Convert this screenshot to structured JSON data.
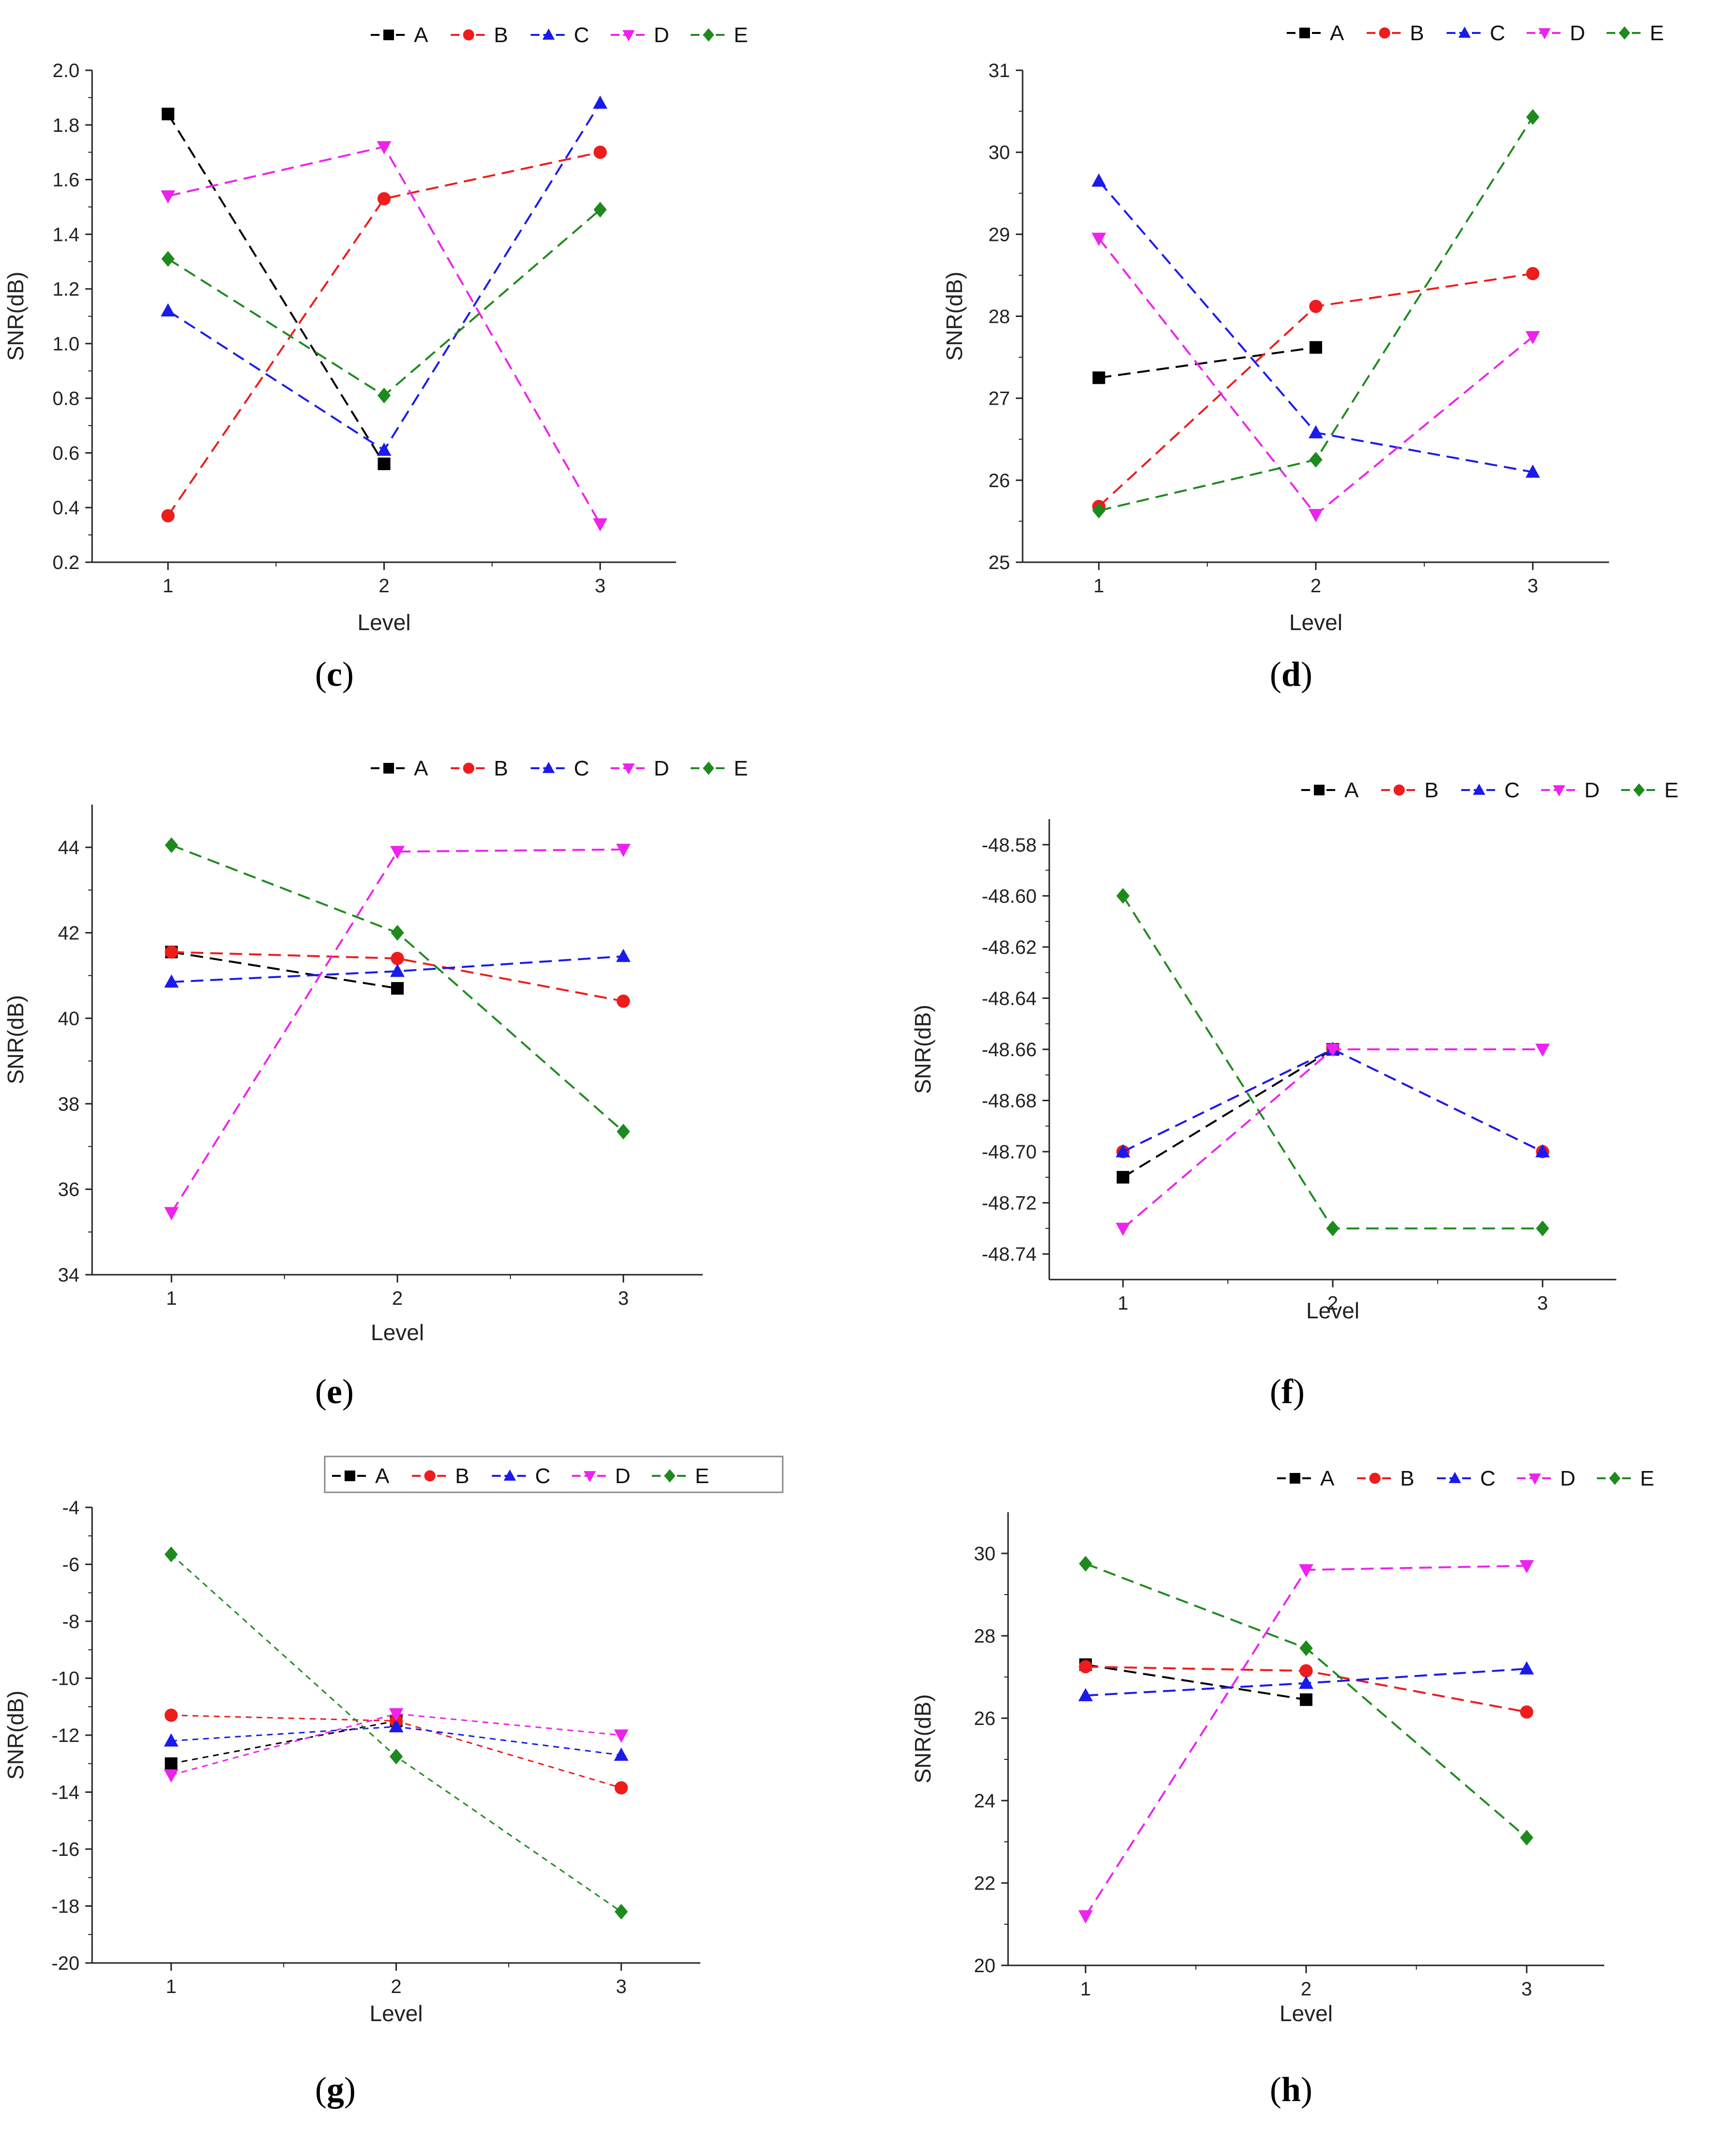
{
  "colors": {
    "A": "#000000",
    "B": "#ee1c1c",
    "C": "#1a1aee",
    "D": "#ee22ee",
    "E": "#1e8a1e"
  },
  "chart_data": [
    {
      "id": "c",
      "caption": "(c)",
      "caption_label": "c",
      "type": "line",
      "categories": [
        "1",
        "2",
        "3"
      ],
      "xlabel": "Level",
      "ylabel": "SNR(dB)",
      "ylim": [
        0.2,
        2.0
      ],
      "yticks": [
        0.2,
        0.4,
        0.6,
        0.8,
        1.0,
        1.2,
        1.4,
        1.6,
        1.8,
        2.0
      ],
      "ytick_labels": [
        "0.2",
        "0.4",
        "0.6",
        "0.8",
        "1.0",
        "1.2",
        "1.4",
        "1.6",
        "1.8",
        "2.0"
      ],
      "grid": false,
      "legend_position": "top",
      "series": [
        {
          "name": "A",
          "values": [
            1.84,
            0.56,
            null
          ]
        },
        {
          "name": "B",
          "values": [
            0.37,
            1.53,
            1.7
          ]
        },
        {
          "name": "C",
          "values": [
            1.12,
            0.61,
            1.88
          ]
        },
        {
          "name": "D",
          "values": [
            1.54,
            1.72,
            0.34
          ]
        },
        {
          "name": "E",
          "values": [
            1.31,
            0.81,
            1.49
          ]
        }
      ]
    },
    {
      "id": "d",
      "caption": "(d)",
      "caption_label": "d",
      "type": "line",
      "categories": [
        "1",
        "2",
        "3"
      ],
      "xlabel": "Level",
      "ylabel": "SNR(dB)",
      "ylim": [
        25,
        31
      ],
      "yticks": [
        25,
        26,
        27,
        28,
        29,
        30,
        31
      ],
      "ytick_labels": [
        "25",
        "26",
        "27",
        "28",
        "29",
        "30",
        "31"
      ],
      "grid": false,
      "legend_position": "top",
      "series": [
        {
          "name": "A",
          "values": [
            27.25,
            27.62,
            null
          ]
        },
        {
          "name": "B",
          "values": [
            25.68,
            28.12,
            28.52
          ]
        },
        {
          "name": "C",
          "values": [
            29.65,
            26.58,
            26.1
          ]
        },
        {
          "name": "D",
          "values": [
            28.95,
            25.58,
            27.75
          ]
        },
        {
          "name": "E",
          "values": [
            25.63,
            26.25,
            30.43
          ]
        }
      ]
    },
    {
      "id": "e",
      "caption": "(e)",
      "caption_label": "e",
      "type": "line",
      "categories": [
        "1",
        "2",
        "3"
      ],
      "xlabel": "Level",
      "ylabel": "SNR(dB)",
      "ylim": [
        34,
        45
      ],
      "yticks": [
        34,
        36,
        38,
        40,
        42,
        44
      ],
      "ytick_labels": [
        "34",
        "36",
        "38",
        "40",
        "42",
        "44"
      ],
      "grid": false,
      "legend_position": "top",
      "series": [
        {
          "name": "A",
          "values": [
            41.55,
            40.7,
            null
          ]
        },
        {
          "name": "B",
          "values": [
            41.55,
            41.4,
            40.4
          ]
        },
        {
          "name": "C",
          "values": [
            40.85,
            41.1,
            41.45
          ]
        },
        {
          "name": "D",
          "values": [
            35.45,
            43.9,
            43.95
          ]
        },
        {
          "name": "E",
          "values": [
            44.05,
            42.0,
            37.35
          ]
        }
      ]
    },
    {
      "id": "f",
      "caption": "(f)",
      "caption_label": "f",
      "type": "line",
      "categories": [
        "1",
        "2",
        "3"
      ],
      "xlabel": "Level",
      "ylabel": "SNR(dB)",
      "ylim": [
        -48.75,
        -48.57
      ],
      "yticks": [
        -48.74,
        -48.72,
        -48.7,
        -48.68,
        -48.66,
        -48.64,
        -48.62,
        -48.6,
        -48.58
      ],
      "ytick_labels": [
        "-48.74",
        "-48.72",
        "-48.70",
        "-48.68",
        "-48.66",
        "-48.64",
        "-48.62",
        "-48.60",
        "-48.58"
      ],
      "grid": false,
      "legend_position": "top",
      "series": [
        {
          "name": "A",
          "values": [
            -48.71,
            -48.66,
            null
          ]
        },
        {
          "name": "B",
          "values": [
            -48.7,
            -48.66,
            -48.7
          ]
        },
        {
          "name": "C",
          "values": [
            -48.7,
            -48.66,
            -48.7
          ]
        },
        {
          "name": "D",
          "values": [
            -48.73,
            -48.66,
            -48.66
          ]
        },
        {
          "name": "E",
          "values": [
            -48.6,
            -48.73,
            -48.73
          ]
        }
      ]
    },
    {
      "id": "g",
      "caption": "(g)",
      "caption_label": "g",
      "type": "line",
      "categories": [
        "1",
        "2",
        "3"
      ],
      "xlabel": "Level",
      "ylabel": "SNR(dB)",
      "ylim": [
        -20,
        -4
      ],
      "yticks": [
        -20,
        -18,
        -16,
        -14,
        -12,
        -10,
        -8,
        -6,
        -4
      ],
      "ytick_labels": [
        "-20",
        "-18",
        "-16",
        "-14",
        "-12",
        "-10",
        "-8",
        "-6",
        "-4"
      ],
      "grid": false,
      "legend_position": "top",
      "series": [
        {
          "name": "A",
          "values": [
            -13.0,
            -11.5,
            null
          ]
        },
        {
          "name": "B",
          "values": [
            -11.3,
            -11.5,
            -13.85
          ]
        },
        {
          "name": "C",
          "values": [
            -12.2,
            -11.7,
            -12.7
          ]
        },
        {
          "name": "D",
          "values": [
            -13.4,
            -11.25,
            -12.0
          ]
        },
        {
          "name": "E",
          "values": [
            -5.65,
            -12.75,
            -18.2
          ]
        }
      ]
    },
    {
      "id": "h",
      "caption": "(h)",
      "caption_label": "h",
      "type": "line",
      "categories": [
        "1",
        "2",
        "3"
      ],
      "xlabel": "Level",
      "ylabel": "SNR(dB)",
      "ylim": [
        20,
        31
      ],
      "yticks": [
        20,
        22,
        24,
        26,
        28,
        30
      ],
      "ytick_labels": [
        "20",
        "22",
        "24",
        "26",
        "28",
        "30"
      ],
      "grid": false,
      "legend_position": "top",
      "series": [
        {
          "name": "A",
          "values": [
            27.3,
            26.45,
            null
          ]
        },
        {
          "name": "B",
          "values": [
            27.25,
            27.15,
            26.15
          ]
        },
        {
          "name": "C",
          "values": [
            26.55,
            26.85,
            27.2
          ]
        },
        {
          "name": "D",
          "values": [
            21.2,
            29.6,
            29.7
          ]
        },
        {
          "name": "E",
          "values": [
            29.75,
            27.7,
            23.1
          ]
        }
      ]
    }
  ]
}
